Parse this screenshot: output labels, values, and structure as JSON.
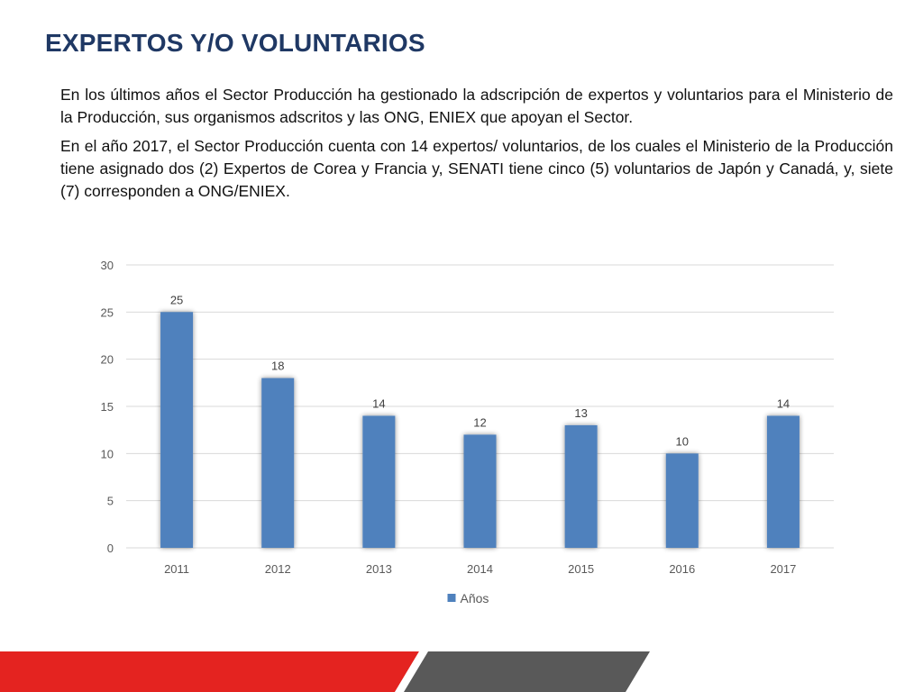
{
  "slide": {
    "title": "EXPERTOS Y/O VOLUNTARIOS",
    "paragraphs": [
      "En los últimos años el Sector Producción ha gestionado la adscripción de expertos y voluntarios para el Ministerio de la Producción, sus organismos adscritos y las ONG, ENIEX que apoyan el Sector.",
      "En el año 2017, el Sector Producción cuenta con 14 expertos/ voluntarios, de los cuales el Ministerio de la Producción tiene asignado dos (2) Expertos de Corea y Francia y,  SENATI tiene cinco (5) voluntarios de Japón y Canadá, y, siete (7) corresponden a ONG/ENIEX."
    ]
  },
  "colors": {
    "title": "#1f3864",
    "bar": "#4f81bd",
    "footer_red": "#e42320",
    "footer_gray": "#595959"
  },
  "chart_data": {
    "type": "bar",
    "categories": [
      "2011",
      "2012",
      "2013",
      "2014",
      "2015",
      "2016",
      "2017"
    ],
    "series": [
      {
        "name": "Años",
        "values": [
          25,
          18,
          14,
          12,
          13,
          10,
          14
        ]
      }
    ],
    "ylim": [
      0,
      30
    ],
    "yticks": [
      0,
      5,
      10,
      15,
      20,
      25,
      30
    ],
    "grid": true,
    "legend": "bottom",
    "data_labels": true
  }
}
